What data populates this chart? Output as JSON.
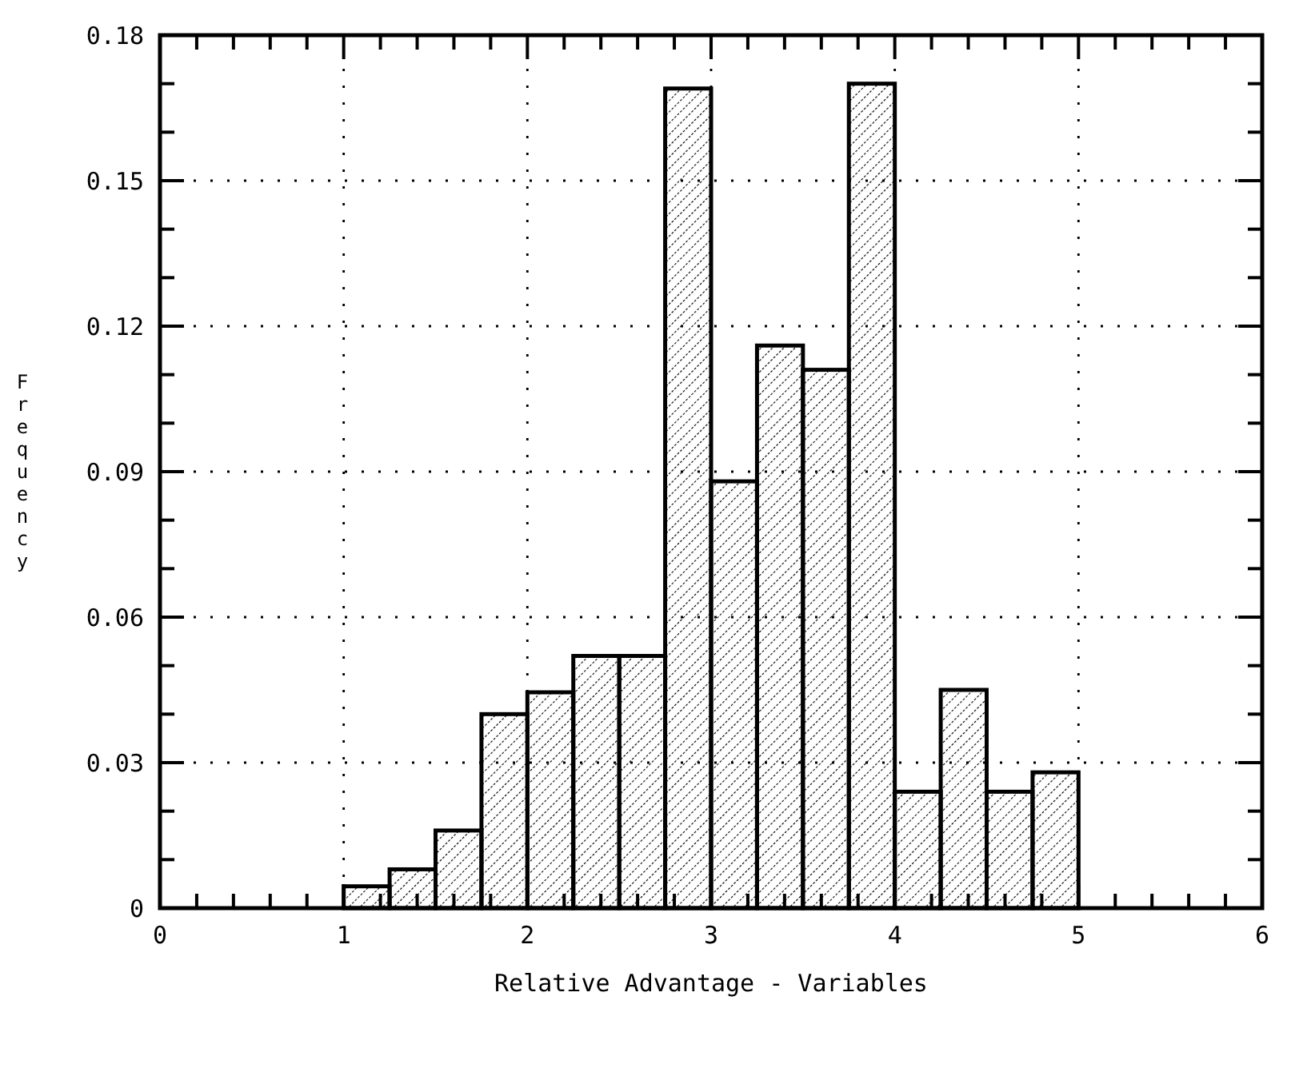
{
  "chart_data": {
    "type": "histogram",
    "xlabel": "Relative Advantage - Variables",
    "ylabel": "Frequency",
    "bins": [
      1,
      1.25,
      1.5,
      1.75,
      2,
      2.25,
      2.5,
      2.75,
      3,
      3.25,
      3.5,
      3.75,
      4,
      4.25,
      4.5,
      4.75,
      5
    ],
    "values": [
      0.0045,
      0.008,
      0.016,
      0.04,
      0.0445,
      0.052,
      0.052,
      0.169,
      0.088,
      0.116,
      0.111,
      0.17,
      0.024,
      0.045,
      0.024,
      0.028
    ],
    "color": "#000000",
    "xlim": [
      0,
      6
    ],
    "xticks": [
      0,
      {
        "value": 0.2,
        "label": null
      },
      {
        "value": 0.4,
        "label": null
      },
      {
        "value": 0.6,
        "label": null
      },
      {
        "value": 0.8,
        "label": null
      },
      1,
      {
        "value": 1.2,
        "label": null
      },
      {
        "value": 1.4,
        "label": null
      },
      {
        "value": 1.6,
        "label": null
      },
      {
        "value": 1.8,
        "label": null
      },
      2,
      {
        "value": 2.2,
        "label": null
      },
      {
        "value": 2.4,
        "label": null
      },
      {
        "value": 2.6,
        "label": null
      },
      {
        "value": 2.8,
        "label": null
      },
      3,
      {
        "value": 3.2,
        "label": null
      },
      {
        "value": 3.4,
        "label": null
      },
      {
        "value": 3.6,
        "label": null
      },
      {
        "value": 3.8,
        "label": null
      },
      4,
      {
        "value": 4.2,
        "label": null
      },
      {
        "value": 4.4,
        "label": null
      },
      {
        "value": 4.6,
        "label": null
      },
      {
        "value": 4.8,
        "label": null
      },
      5,
      {
        "value": 5.2,
        "label": null
      },
      {
        "value": 5.4,
        "label": null
      },
      {
        "value": 5.6,
        "label": null
      },
      {
        "value": 5.8,
        "label": null
      },
      6
    ],
    "ylim": [
      0,
      0.18
    ],
    "yticks": [
      0,
      {
        "value": 0.01,
        "label": null
      },
      {
        "value": 0.02,
        "label": null
      },
      0.03,
      {
        "value": 0.04,
        "label": null
      },
      {
        "value": 0.05,
        "label": null
      },
      0.06,
      {
        "value": 0.07,
        "label": null
      },
      {
        "value": 0.08,
        "label": null
      },
      0.09,
      {
        "value": 0.1,
        "label": null
      },
      {
        "value": 0.11,
        "label": null
      },
      0.12,
      {
        "value": 0.13,
        "label": null
      },
      {
        "value": 0.14,
        "label": null
      },
      0.15,
      {
        "value": 0.16,
        "label": null
      },
      {
        "value": 0.17,
        "label": null
      },
      0.18
    ],
    "grid": true
  }
}
